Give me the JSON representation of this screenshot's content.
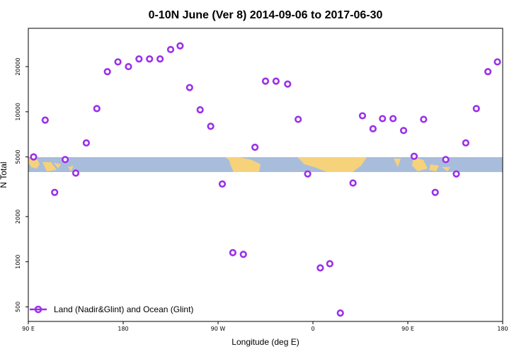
{
  "chart_data": {
    "type": "scatter",
    "title": "0-10N June (Ver 8)   2014-09-06 to 2017-06-30",
    "xlabel": "Longitude (deg E)",
    "ylabel": "N Total",
    "y_scale": "log",
    "xlim": [
      90,
      540
    ],
    "ylim": [
      400,
      36000
    ],
    "x_ticks": [
      {
        "value": 90,
        "label": "90 E"
      },
      {
        "value": 180,
        "label": "180"
      },
      {
        "value": 270,
        "label": "90 W"
      },
      {
        "value": 360,
        "label": "0"
      },
      {
        "value": 450,
        "label": "90 E"
      },
      {
        "value": 540,
        "label": "180"
      }
    ],
    "y_ticks": [
      {
        "value": 500,
        "label": "500"
      },
      {
        "value": 1000,
        "label": "1000"
      },
      {
        "value": 2000,
        "label": "2000"
      },
      {
        "value": 5000,
        "label": "5000"
      },
      {
        "value": 10000,
        "label": "10000"
      },
      {
        "value": 20000,
        "label": "20000"
      }
    ],
    "series": [
      {
        "name": "Land (Nadir&Glint) and Ocean (Glint)",
        "color": "#9b30e8",
        "x": [
          95,
          106,
          115,
          125,
          135,
          145,
          155,
          165,
          175,
          185,
          195,
          205,
          215,
          225,
          234,
          243,
          253,
          263,
          274,
          284,
          294,
          305,
          315,
          325,
          336,
          346,
          355,
          367,
          376,
          386,
          398,
          407,
          417,
          426,
          436,
          446,
          456,
          465,
          476,
          486,
          496,
          505,
          515,
          526,
          535
        ],
        "y": [
          5000,
          8800,
          2900,
          4800,
          3900,
          6200,
          10500,
          18500,
          21500,
          20000,
          22500,
          22500,
          22500,
          26000,
          27500,
          14500,
          10300,
          8000,
          3300,
          1150,
          1120,
          5800,
          16000,
          16000,
          15300,
          8900,
          3850,
          910,
          970,
          455,
          3350,
          9400,
          7700,
          9000,
          9000,
          7500,
          5050,
          8900,
          2900,
          4800,
          3850,
          6200,
          10500,
          18500,
          21500
        ]
      }
    ],
    "legend": "bottom-left",
    "background_map": "world land/ocean strip, longitude 90E to 180 repeated",
    "grid": false
  }
}
